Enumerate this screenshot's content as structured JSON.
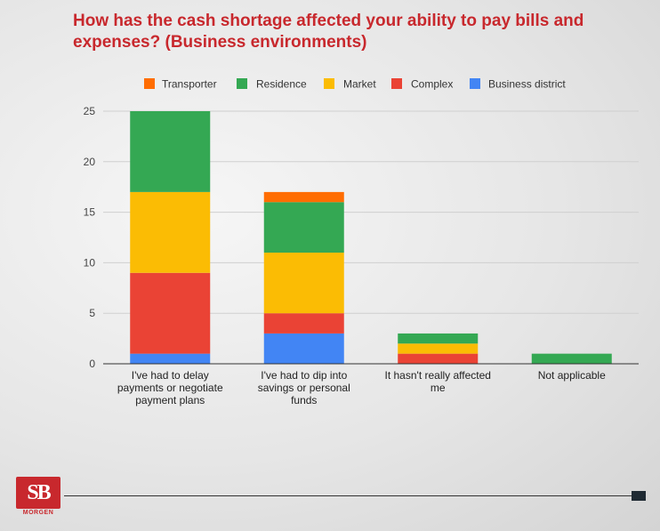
{
  "title": "How has the cash shortage affected your ability to pay bills and expenses? (Business environments)",
  "logo": {
    "text": "SB",
    "subtext": "MORGEN",
    "color": "#c8282d"
  },
  "chart_data": {
    "type": "bar",
    "stacked": true,
    "categories": [
      [
        "I've had to delay",
        "payments or negotiate",
        "payment plans"
      ],
      [
        "I've had to dip into",
        "savings or personal",
        "funds"
      ],
      [
        "It hasn't really affected",
        "me"
      ],
      [
        "Not applicable"
      ]
    ],
    "series": [
      {
        "name": "Business district",
        "color": "#4285f4",
        "values": [
          1,
          3,
          0,
          0
        ]
      },
      {
        "name": "Complex",
        "color": "#ea4335",
        "values": [
          8,
          2,
          1,
          0
        ]
      },
      {
        "name": "Market",
        "color": "#fbbc04",
        "values": [
          8,
          6,
          1,
          0
        ]
      },
      {
        "name": "Residence",
        "color": "#34a853",
        "values": [
          8,
          5,
          1,
          1
        ]
      },
      {
        "name": "Transporter",
        "color": "#ff6d01",
        "values": [
          0,
          1,
          0,
          0
        ]
      }
    ],
    "legend_order": [
      "Transporter",
      "Residence",
      "Market",
      "Complex",
      "Business district"
    ],
    "yticks": [
      0,
      5,
      10,
      15,
      20,
      25
    ],
    "ylim": [
      0,
      25
    ],
    "xlabel": "",
    "ylabel": "",
    "legend": "top",
    "grid": true
  }
}
